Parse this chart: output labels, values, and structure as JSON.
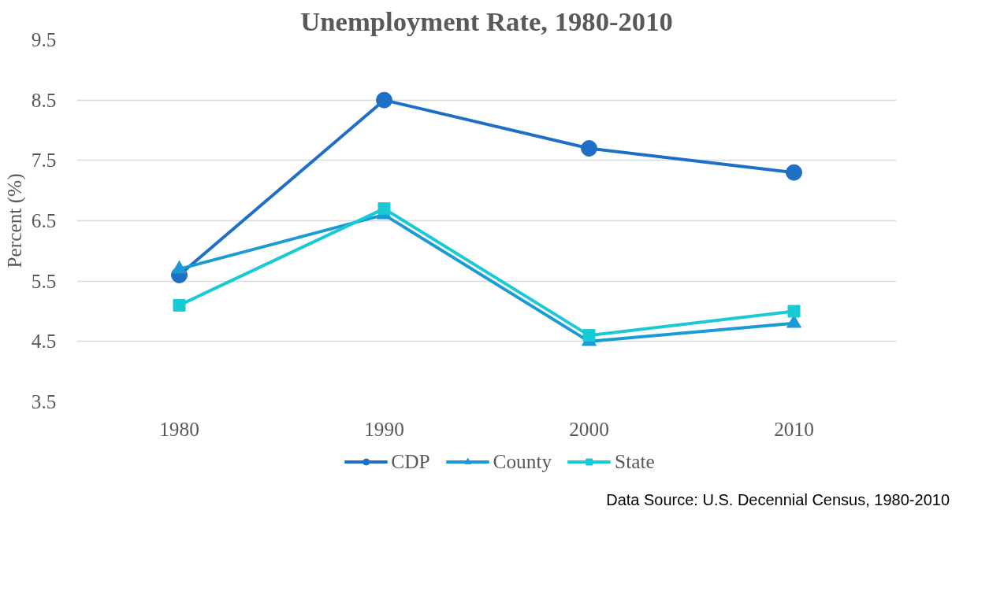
{
  "chart_data": {
    "type": "line",
    "title": "Unemployment Rate, 1980-2010",
    "ylabel": "Percent (%)",
    "categories": [
      "1980",
      "1990",
      "2000",
      "2010"
    ],
    "ylim": [
      3.5,
      9.5
    ],
    "yticks": [
      3.5,
      4.5,
      5.5,
      6.5,
      7.5,
      8.5,
      9.5
    ],
    "grid": "y",
    "legend": "bottom",
    "series": [
      {
        "name": "CDP",
        "color": "#1f6fc6",
        "marker": "circle",
        "values": [
          5.6,
          8.5,
          7.7,
          7.3
        ]
      },
      {
        "name": "County",
        "color": "#1a9ad6",
        "marker": "triangle",
        "values": [
          5.7,
          6.6,
          4.5,
          4.8
        ]
      },
      {
        "name": "State",
        "color": "#19c9d4",
        "marker": "square",
        "values": [
          5.1,
          6.7,
          4.6,
          5.0
        ]
      }
    ],
    "annotations": [
      "Data Source: U.S. Decennial Census, 1980-2010"
    ]
  }
}
